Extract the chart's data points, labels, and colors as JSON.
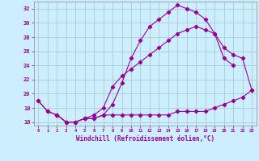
{
  "xlabel": "Windchill (Refroidissement éolien,°C)",
  "bg_color": "#cceeff",
  "line_color": "#990099",
  "grid_color": "#aacccc",
  "xlim": [
    -0.5,
    23.5
  ],
  "ylim": [
    15.5,
    33.0
  ],
  "xticks": [
    0,
    1,
    2,
    3,
    4,
    5,
    6,
    7,
    8,
    9,
    10,
    11,
    12,
    13,
    14,
    15,
    16,
    17,
    18,
    19,
    20,
    21,
    22,
    23
  ],
  "yticks": [
    16,
    18,
    20,
    22,
    24,
    26,
    28,
    30,
    32
  ],
  "line_a_x": [
    0,
    1,
    2,
    3,
    4,
    5,
    6,
    7,
    8,
    9,
    10,
    11,
    12,
    13,
    14,
    15,
    16,
    17,
    18,
    19,
    20,
    21,
    22,
    23
  ],
  "line_a_y": [
    19.0,
    17.5,
    17.0,
    16.0,
    16.0,
    16.5,
    16.5,
    17.0,
    17.0,
    17.0,
    17.0,
    17.0,
    17.0,
    17.0,
    17.0,
    17.5,
    17.5,
    17.5,
    17.5,
    18.0,
    18.5,
    19.0,
    19.5,
    20.5
  ],
  "line_b_x": [
    0,
    1,
    2,
    3,
    4,
    5,
    6,
    7,
    8,
    9,
    10,
    11,
    12,
    13,
    14,
    15,
    16,
    17,
    18,
    19,
    20,
    21,
    22,
    23
  ],
  "line_b_y": [
    19.0,
    17.5,
    17.0,
    16.0,
    16.0,
    16.5,
    16.5,
    17.0,
    18.5,
    21.5,
    25.0,
    27.5,
    29.5,
    30.5,
    31.5,
    32.5,
    32.0,
    31.5,
    30.5,
    28.5,
    25.0,
    24.0,
    null,
    null
  ],
  "line_c_x": [
    2,
    3,
    4,
    5,
    6,
    7,
    8,
    9,
    10,
    11,
    12,
    13,
    14,
    15,
    16,
    17,
    18,
    19,
    20,
    21,
    22,
    23
  ],
  "line_c_y": [
    17.0,
    16.0,
    16.0,
    16.5,
    17.0,
    18.0,
    21.0,
    22.5,
    23.5,
    24.5,
    25.5,
    26.5,
    27.5,
    28.5,
    29.0,
    29.5,
    29.0,
    28.5,
    26.5,
    25.5,
    25.0,
    20.5
  ]
}
